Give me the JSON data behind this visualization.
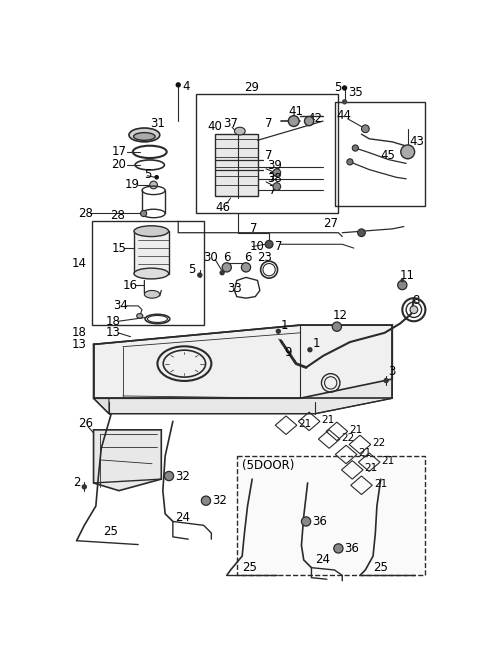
{
  "background_color": "#ffffff",
  "line_color": "#2a2a2a",
  "fig_width": 4.8,
  "fig_height": 6.56,
  "dpi": 100
}
